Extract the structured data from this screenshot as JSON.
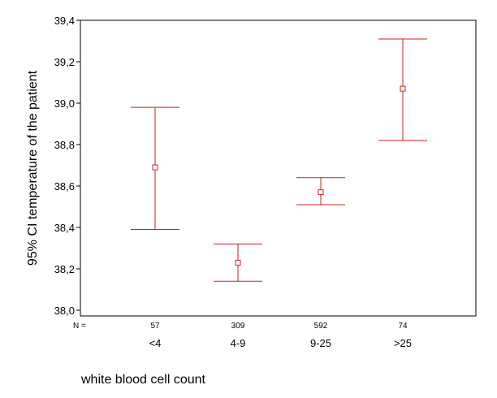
{
  "chart_data": {
    "type": "errorbar",
    "categories": [
      "<4",
      "4-9",
      "9-25",
      ">25"
    ],
    "n_label": "N =",
    "n_values": [
      "57",
      "309",
      "592",
      "74"
    ],
    "series": [
      {
        "values": [
          38.69,
          38.23,
          38.57,
          39.07
        ],
        "lower": [
          38.39,
          38.14,
          38.51,
          38.82
        ],
        "upper": [
          38.98,
          38.32,
          38.64,
          39.31
        ]
      }
    ],
    "ylabel": "95% CI temperature of the patient",
    "xlabel": "white blood cell count",
    "ylim": [
      38.0,
      39.4
    ],
    "yticks": [
      "38,0",
      "38,2",
      "38,4",
      "38,6",
      "38,8",
      "39,0",
      "39,2",
      "39,4"
    ],
    "grid": false,
    "color": "#cc2222"
  }
}
